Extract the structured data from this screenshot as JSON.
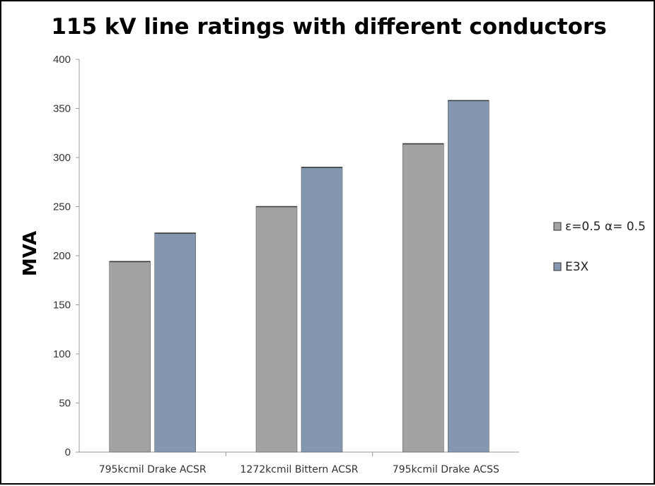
{
  "chart_data": {
    "type": "bar",
    "title": "115 kV line ratings with different conductors",
    "xlabel": "",
    "ylabel": "MVA",
    "ylim": [
      0,
      400
    ],
    "yticks": [
      0,
      50,
      100,
      150,
      200,
      250,
      300,
      350,
      400
    ],
    "grid": false,
    "legend_position": "right",
    "categories": [
      "795kcmil Drake ACSR",
      "1272kcmil Bittern ACSR",
      "795kcmil Drake ACSS"
    ],
    "series": [
      {
        "name": "ε=0.5 α= 0.5",
        "values": [
          194,
          250,
          314
        ],
        "color": "#a3a3a3"
      },
      {
        "name": "E3X",
        "values": [
          223,
          290,
          358
        ],
        "color": "#8497b0"
      }
    ]
  }
}
